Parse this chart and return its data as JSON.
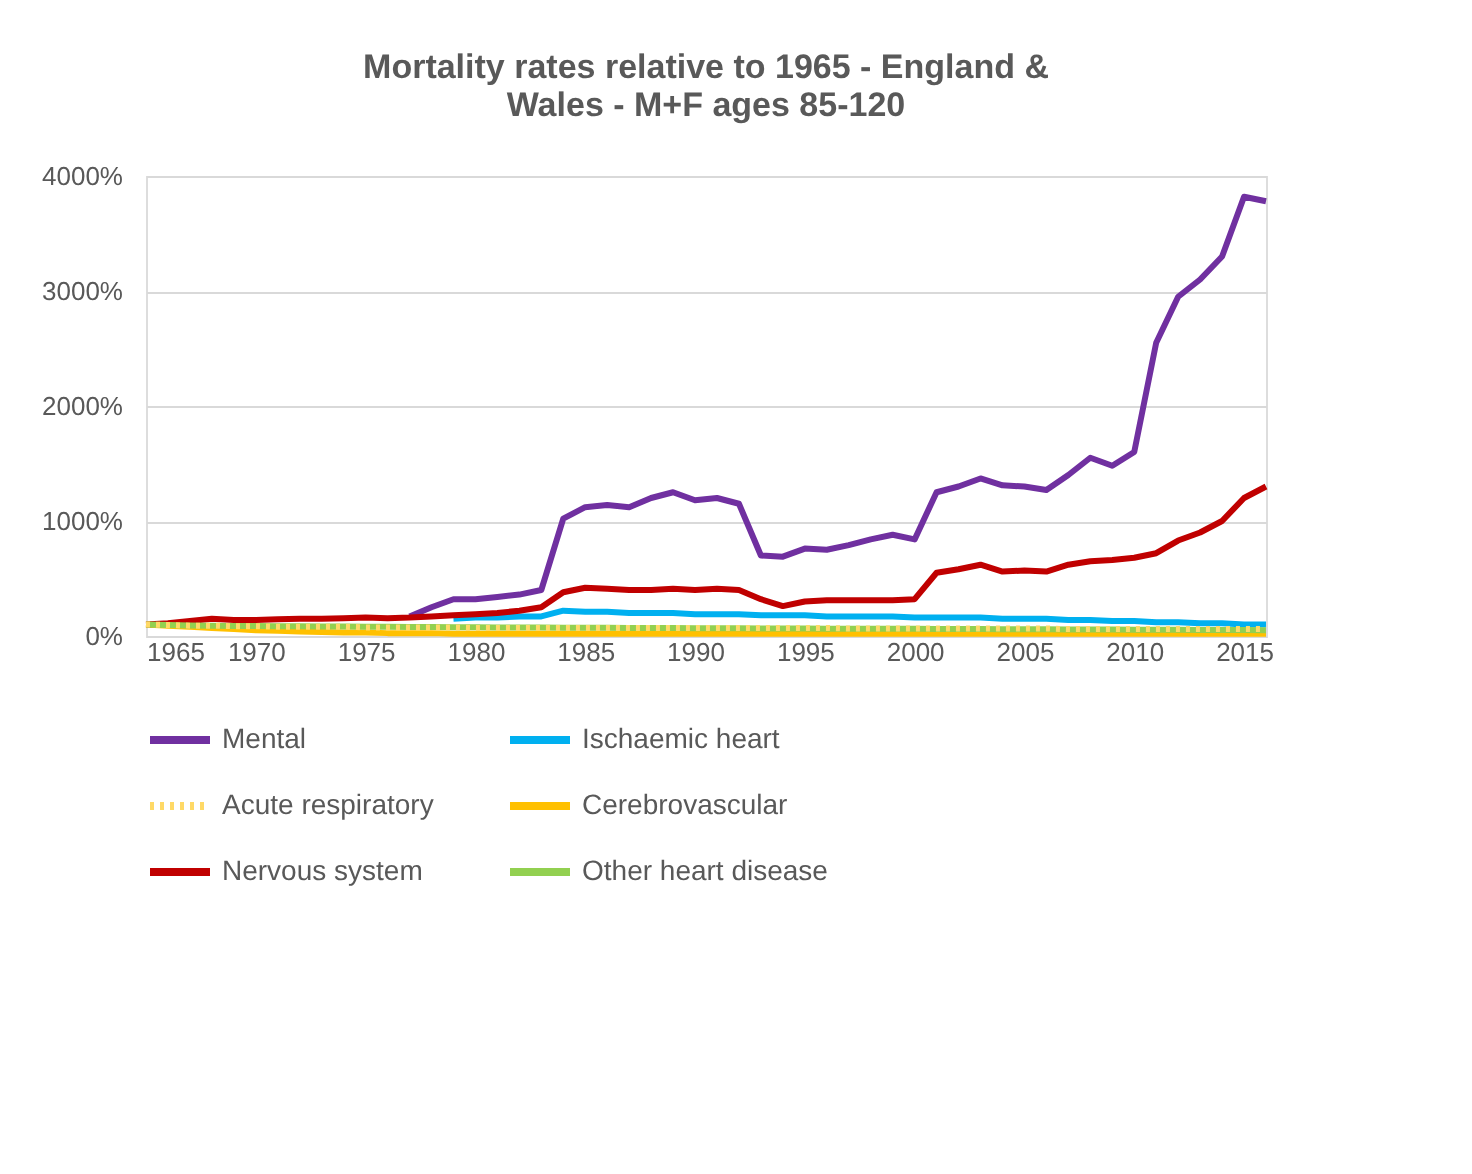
{
  "chart_data": {
    "type": "line",
    "title": "Mortality rates relative to 1965 - England & Wales - M+F ages 85-120",
    "x": [
      1965,
      1966,
      1967,
      1968,
      1969,
      1970,
      1971,
      1972,
      1973,
      1974,
      1975,
      1976,
      1977,
      1978,
      1979,
      1980,
      1981,
      1982,
      1983,
      1984,
      1985,
      1986,
      1987,
      1988,
      1989,
      1990,
      1991,
      1992,
      1993,
      1994,
      1995,
      1996,
      1997,
      1998,
      1999,
      2000,
      2001,
      2002,
      2003,
      2004,
      2005,
      2006,
      2007,
      2008,
      2009,
      2010,
      2011,
      2012,
      2013,
      2014,
      2015,
      2016
    ],
    "xlim": [
      1965,
      2016
    ],
    "xticks": [
      1965,
      1970,
      1975,
      1980,
      1985,
      1990,
      1995,
      2000,
      2005,
      2010,
      2015
    ],
    "ylim": [
      0,
      4000
    ],
    "yticks": [
      {
        "value": 0,
        "label": "0%"
      },
      {
        "value": 1000,
        "label": "1000%"
      },
      {
        "value": 2000,
        "label": "2000%"
      },
      {
        "value": 3000,
        "label": "3000%"
      },
      {
        "value": 4000,
        "label": "4000%"
      }
    ],
    "grid": "y",
    "legend": "bottom",
    "marker": "none",
    "series": [
      {
        "name": "Mental",
        "color": "#7030a0",
        "line_style": "solid",
        "values": [
          null,
          null,
          null,
          null,
          null,
          null,
          null,
          null,
          null,
          null,
          null,
          null,
          170,
          250,
          320,
          320,
          340,
          360,
          400,
          1020,
          1120,
          1140,
          1120,
          1200,
          1250,
          1180,
          1200,
          1150,
          700,
          690,
          760,
          750,
          790,
          840,
          880,
          840,
          1250,
          1300,
          1370,
          1310,
          1300,
          1270,
          1400,
          1550,
          1480,
          1600,
          2550,
          2950,
          3100,
          3300,
          3820,
          3780
        ]
      },
      {
        "name": "Ischaemic heart",
        "color": "#00b0f0",
        "line_style": "solid",
        "values": [
          null,
          null,
          null,
          null,
          null,
          null,
          null,
          null,
          null,
          null,
          null,
          null,
          null,
          null,
          150,
          160,
          160,
          170,
          170,
          220,
          210,
          210,
          200,
          200,
          200,
          190,
          190,
          190,
          180,
          180,
          180,
          170,
          170,
          170,
          170,
          160,
          160,
          160,
          160,
          150,
          150,
          150,
          140,
          140,
          130,
          130,
          120,
          120,
          110,
          110,
          100,
          100
        ]
      },
      {
        "name": "Acute respiratory",
        "color": "#ffd966",
        "line_style": "dotted",
        "values": [
          100,
          95,
          90,
          90,
          85,
          85,
          80,
          80,
          80,
          80,
          75,
          75,
          75,
          75,
          75,
          70,
          70,
          70,
          70,
          70,
          70,
          70,
          70,
          70,
          70,
          70,
          70,
          70,
          70,
          70,
          70,
          70,
          65,
          65,
          65,
          65,
          65,
          65,
          65,
          65,
          65,
          65,
          60,
          60,
          60,
          60,
          60,
          60,
          60,
          60,
          60,
          60
        ]
      },
      {
        "name": "Cerebrovascular",
        "color": "#ffc000",
        "line_style": "solid",
        "values": [
          100,
          90,
          80,
          70,
          60,
          50,
          45,
          40,
          35,
          30,
          30,
          25,
          25,
          25,
          20,
          20,
          20,
          20,
          20,
          20,
          20,
          20,
          20,
          20,
          20,
          20,
          20,
          20,
          20,
          20,
          20,
          20,
          20,
          20,
          20,
          20,
          20,
          20,
          20,
          20,
          20,
          20,
          20,
          20,
          20,
          20,
          20,
          20,
          20,
          20,
          20,
          20
        ]
      },
      {
        "name": "Nervous system",
        "color": "#c00000",
        "line_style": "solid",
        "values": [
          100,
          110,
          130,
          150,
          140,
          140,
          145,
          150,
          150,
          155,
          160,
          155,
          160,
          170,
          180,
          190,
          200,
          220,
          250,
          380,
          420,
          410,
          400,
          400,
          410,
          400,
          410,
          400,
          320,
          260,
          300,
          310,
          310,
          310,
          310,
          320,
          550,
          580,
          620,
          560,
          570,
          560,
          620,
          650,
          660,
          680,
          720,
          830,
          900,
          1000,
          1200,
          1300
        ]
      },
      {
        "name": "Other heart disease",
        "color": "#92d050",
        "line_style": "solid",
        "values": [
          100,
          95,
          92,
          90,
          88,
          86,
          85,
          84,
          83,
          82,
          81,
          80,
          79,
          78,
          77,
          76,
          75,
          74,
          73,
          72,
          72,
          71,
          70,
          70,
          69,
          68,
          68,
          67,
          66,
          66,
          65,
          64,
          64,
          63,
          62,
          62,
          61,
          60,
          60,
          59,
          58,
          58,
          57,
          56,
          56,
          55,
          54,
          54,
          53,
          52,
          52,
          51
        ]
      }
    ]
  }
}
